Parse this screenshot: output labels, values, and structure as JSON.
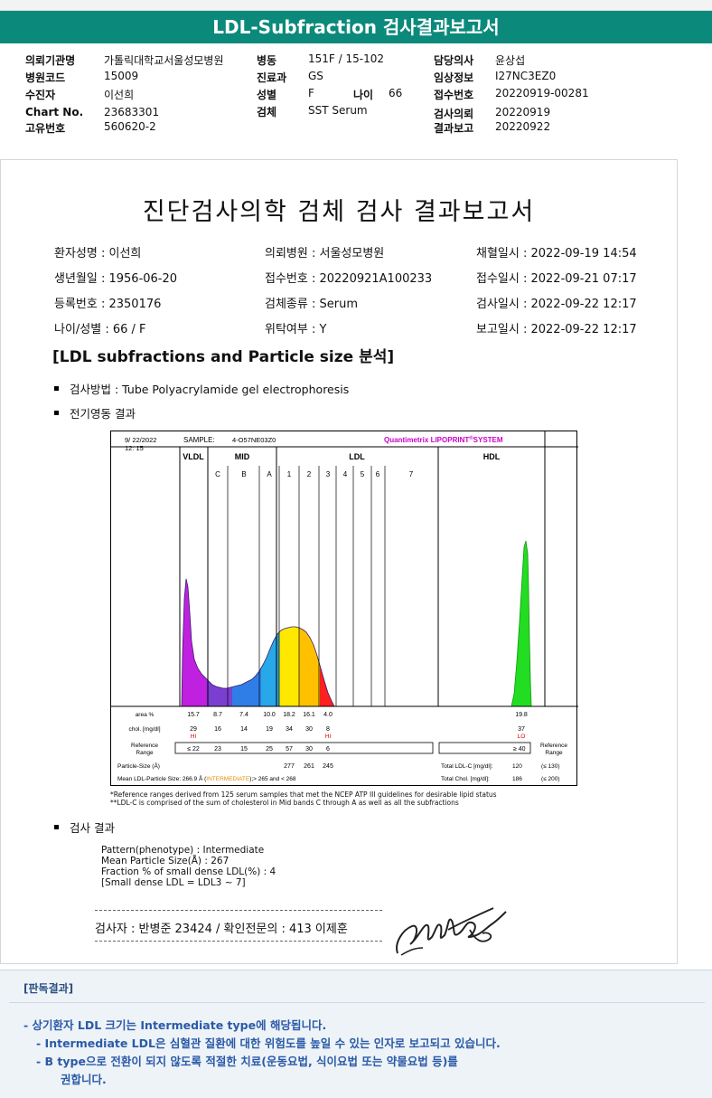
{
  "title_bar": "LDL-Subfraction 검사결과보고서",
  "header": {
    "col1": [
      {
        "label": "의뢰기관명",
        "value": "가톨릭대학교서울성모병원"
      },
      {
        "label": "병원코드",
        "value": "15009"
      },
      {
        "label": "수진자",
        "value": "이선희"
      },
      {
        "label": "Chart No.",
        "value": "23683301"
      },
      {
        "label": "고유번호",
        "value": "560620-2"
      }
    ],
    "col2": [
      {
        "label": "병동",
        "value": "151F / 15-102"
      },
      {
        "label": "진료과",
        "value": "GS"
      },
      {
        "label": "성별",
        "value": "F"
      },
      {
        "label": "검체",
        "value": "SST Serum"
      }
    ],
    "age": {
      "label": "나이",
      "value": "66"
    },
    "col3": [
      {
        "label": "담당의사",
        "value": "윤상섭"
      },
      {
        "label": "임상정보",
        "value": "I27NC3EZ0"
      },
      {
        "label": "접수번호",
        "value": "20220919-00281"
      },
      {
        "label": "검사의뢰",
        "value": "20220919"
      },
      {
        "label": "결과보고",
        "value": "20220922"
      }
    ]
  },
  "report": {
    "title": "진단검사의학 검체 검사 결과보고서",
    "patient_info": [
      [
        "환자성명 : 이선희",
        "의뢰병원 : 서울성모병원",
        "채혈일시 : 2022-09-19 14:54"
      ],
      [
        "생년월일 : 1956-06-20",
        "접수번호 : 20220921A100233",
        "접수일시 : 2022-09-21 07:17"
      ],
      [
        "등록번호 : 2350176",
        "검체종류 : Serum",
        "검사일시 : 2022-09-22 12:17"
      ],
      [
        "나이/성별 : 66 / F",
        "위탁여부 : Y",
        "보고일시 : 2022-09-22 12:17"
      ]
    ],
    "section_heading": "[LDL subfractions and Particle size 분석]",
    "method": "검사방법 : Tube Polyacrylamide gel electrophoresis",
    "electro_heading": "전기영동 결과",
    "result_heading": "검사 결과"
  },
  "chart": {
    "date": "9/ 22/2022",
    "time": "12: 15",
    "sample_label": "SAMPLE:",
    "sample_id": "4-O57NE03Z0",
    "brand_main": "Quantimetrix LIPOPRINT",
    "brand_reg": "®",
    "brand_sys": "SYSTEM",
    "groups": [
      "VLDL",
      "MID",
      "LDL",
      "HDL"
    ],
    "mid_bands": [
      "C",
      "B",
      "A"
    ],
    "ldl_bands": [
      "1",
      "2",
      "3",
      "4",
      "5",
      "6",
      "7"
    ],
    "row_labels": {
      "area": "area %",
      "chol": "chol. [mg/dl]",
      "ref1": "Reference",
      "ref2": "Range",
      "psize": "Particle-Size (Å)",
      "mean": "Mean LDL-Particle Size:"
    },
    "area": [
      "15.7",
      "8.7",
      "7.4",
      "10.0",
      "18.2",
      "16.1",
      "4.0"
    ],
    "hdl_area": "19.8",
    "chol": [
      "29",
      "16",
      "14",
      "19",
      "34",
      "30",
      "8"
    ],
    "hdl_chol": "37",
    "flags": {
      "vldl": "HI",
      "ldl3": "HI",
      "hdl": "LO"
    },
    "ref": [
      "≤ 22",
      "23",
      "15",
      "25",
      "57",
      "30",
      "6"
    ],
    "hdl_ref": "≥ 40",
    "ref_right_1": "Reference",
    "ref_right_2": "Range",
    "particle_sizes": [
      "277",
      "261",
      "245"
    ],
    "mean_size": "266.9 Å",
    "mean_open": "(",
    "mean_class": "INTERMEDIATE",
    "mean_range": "> 265 and < 268)",
    "total_ldl_label": "Total LDL-C [mg/dl]:",
    "total_ldl_value": "120",
    "total_ldl_ref": "(≤ 130)",
    "total_chol_label": "Total Chol. [mg/dl]:",
    "total_chol_value": "186",
    "total_chol_ref": "(≤ 200)",
    "colors": {
      "vldl": "#c020e0",
      "mid_c": "#7a3fd0",
      "mid_b": "#2f7ee8",
      "mid_a": "#28a8e8",
      "ldl1": "#ffe800",
      "ldl2": "#ffc000",
      "ldl3": "#ff2020",
      "hdl": "#22dd22"
    }
  },
  "chart_notes": [
    "*Reference ranges derived from 125 serum samples that met the NCEP ATP III guidelines for desirable lipid status",
    "**LDL-C is comprised of the sum of cholesterol in Mid bands C through A as well as all the subfractions"
  ],
  "results": [
    "Pattern(phenotype) : Intermediate",
    "Mean Particle Size(Å) : 267",
    "Fraction % of small dense LDL(%) : 4",
    "[Small dense LDL = LDL3 ~ 7]"
  ],
  "signature_line": "검사자 : 반병준 23424 / 확인전문의 : 413 이제훈",
  "interpretation": {
    "heading": "[판독결과]",
    "lines": [
      "- 상기환자 LDL 크기는 Intermediate type에 해당됩니다.",
      "- Intermediate LDL은 심혈관 질환에 대한 위험도를 높일 수 있는 인자로 보고되고 있습니다.",
      "- B type으로 전환이 되지 않도록 적절한 치료(운동요법, 식이요법 또는 약물요법 등)를",
      "권합니다."
    ]
  }
}
